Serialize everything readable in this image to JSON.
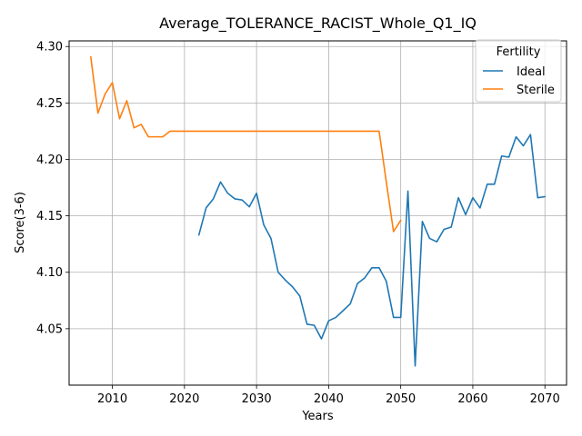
{
  "chart_data": {
    "type": "line",
    "title": "Average_TOLERANCE_RACIST_Whole_Q1_IQ",
    "xlabel": "Years",
    "ylabel": "Score(3-6)",
    "xlim": [
      2004,
      2073
    ],
    "ylim": [
      4.0,
      4.305
    ],
    "xticks": [
      2010,
      2020,
      2030,
      2040,
      2050,
      2060,
      2070
    ],
    "yticks": [
      4.05,
      4.1,
      4.15,
      4.2,
      4.25,
      4.3
    ],
    "ytick_labels": [
      "4.05",
      "4.10",
      "4.15",
      "4.20",
      "4.25",
      "4.30"
    ],
    "grid": true,
    "legend": {
      "title": "Fertility",
      "placement": "top-right"
    },
    "series": [
      {
        "name": "Ideal",
        "color": "#1f77b4",
        "x": [
          2022,
          2023,
          2024,
          2025,
          2026,
          2027,
          2028,
          2029,
          2030,
          2031,
          2032,
          2033,
          2034,
          2035,
          2036,
          2037,
          2038,
          2039,
          2040,
          2041,
          2042,
          2043,
          2044,
          2045,
          2046,
          2047,
          2048,
          2049,
          2050,
          2051,
          2052,
          2053,
          2054,
          2055,
          2056,
          2057,
          2058,
          2059,
          2060,
          2061,
          2062,
          2063,
          2064,
          2065,
          2066,
          2067,
          2068,
          2069,
          2070
        ],
        "y": [
          4.133,
          4.157,
          4.165,
          4.18,
          4.17,
          4.165,
          4.164,
          4.158,
          4.17,
          4.142,
          4.13,
          4.1,
          4.093,
          4.087,
          4.079,
          4.054,
          4.053,
          4.041,
          4.057,
          4.06,
          4.066,
          4.072,
          4.09,
          4.095,
          4.104,
          4.104,
          4.092,
          4.06,
          4.06,
          4.172,
          4.017,
          4.145,
          4.13,
          4.127,
          4.138,
          4.14,
          4.166,
          4.151,
          4.166,
          4.157,
          4.178,
          4.178,
          4.203,
          4.202,
          4.22,
          4.212,
          4.222,
          4.166,
          4.167
        ]
      },
      {
        "name": "Sterile",
        "color": "#ff7f0e",
        "x": [
          2007,
          2008,
          2009,
          2010,
          2011,
          2012,
          2013,
          2014,
          2015,
          2016,
          2017,
          2018,
          2019,
          2020,
          2025,
          2030,
          2035,
          2040,
          2045,
          2047,
          2048,
          2049,
          2050
        ],
        "y": [
          4.291,
          4.241,
          4.258,
          4.268,
          4.236,
          4.252,
          4.228,
          4.231,
          4.22,
          4.22,
          4.22,
          4.225,
          4.225,
          4.225,
          4.225,
          4.225,
          4.225,
          4.225,
          4.225,
          4.225,
          4.18,
          4.136,
          4.146
        ]
      }
    ]
  }
}
